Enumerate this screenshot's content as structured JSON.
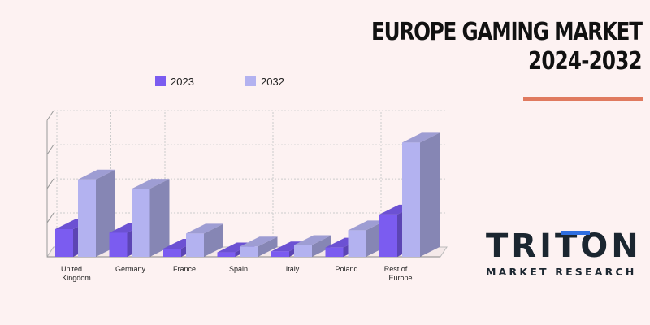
{
  "title": {
    "line1": "EUROPE GAMING MARKET",
    "line2": "2024-2032"
  },
  "logo": {
    "name": "TRITON",
    "tagline": "MARKET RESEARCH"
  },
  "colors": {
    "background": "#fdf2f2",
    "series_2023": "#7b5cf0",
    "series_2032": "#b3b2f0",
    "accent_rule": "#e07a5f",
    "logo_accent": "#2f6fe0"
  },
  "chart_data": {
    "type": "bar",
    "title": "EUROPE GAMING MARKET 2024-2032",
    "categories": [
      [
        "United",
        "Kingdom"
      ],
      [
        "Germany"
      ],
      [
        "France"
      ],
      [
        "Spain"
      ],
      [
        "Italy"
      ],
      [
        "Poland"
      ],
      [
        "Rest of",
        "Europe"
      ]
    ],
    "series": [
      {
        "name": "2023",
        "values": [
          7.5,
          6.5,
          2.2,
          1.2,
          1.5,
          2.5,
          11.5
        ]
      },
      {
        "name": "2032",
        "values": [
          21,
          18.5,
          6.3,
          2.8,
          3.2,
          7.2,
          31
        ]
      }
    ],
    "ylim": [
      0,
      41
    ],
    "legend": "top-left",
    "grid": true,
    "style": "3d"
  }
}
